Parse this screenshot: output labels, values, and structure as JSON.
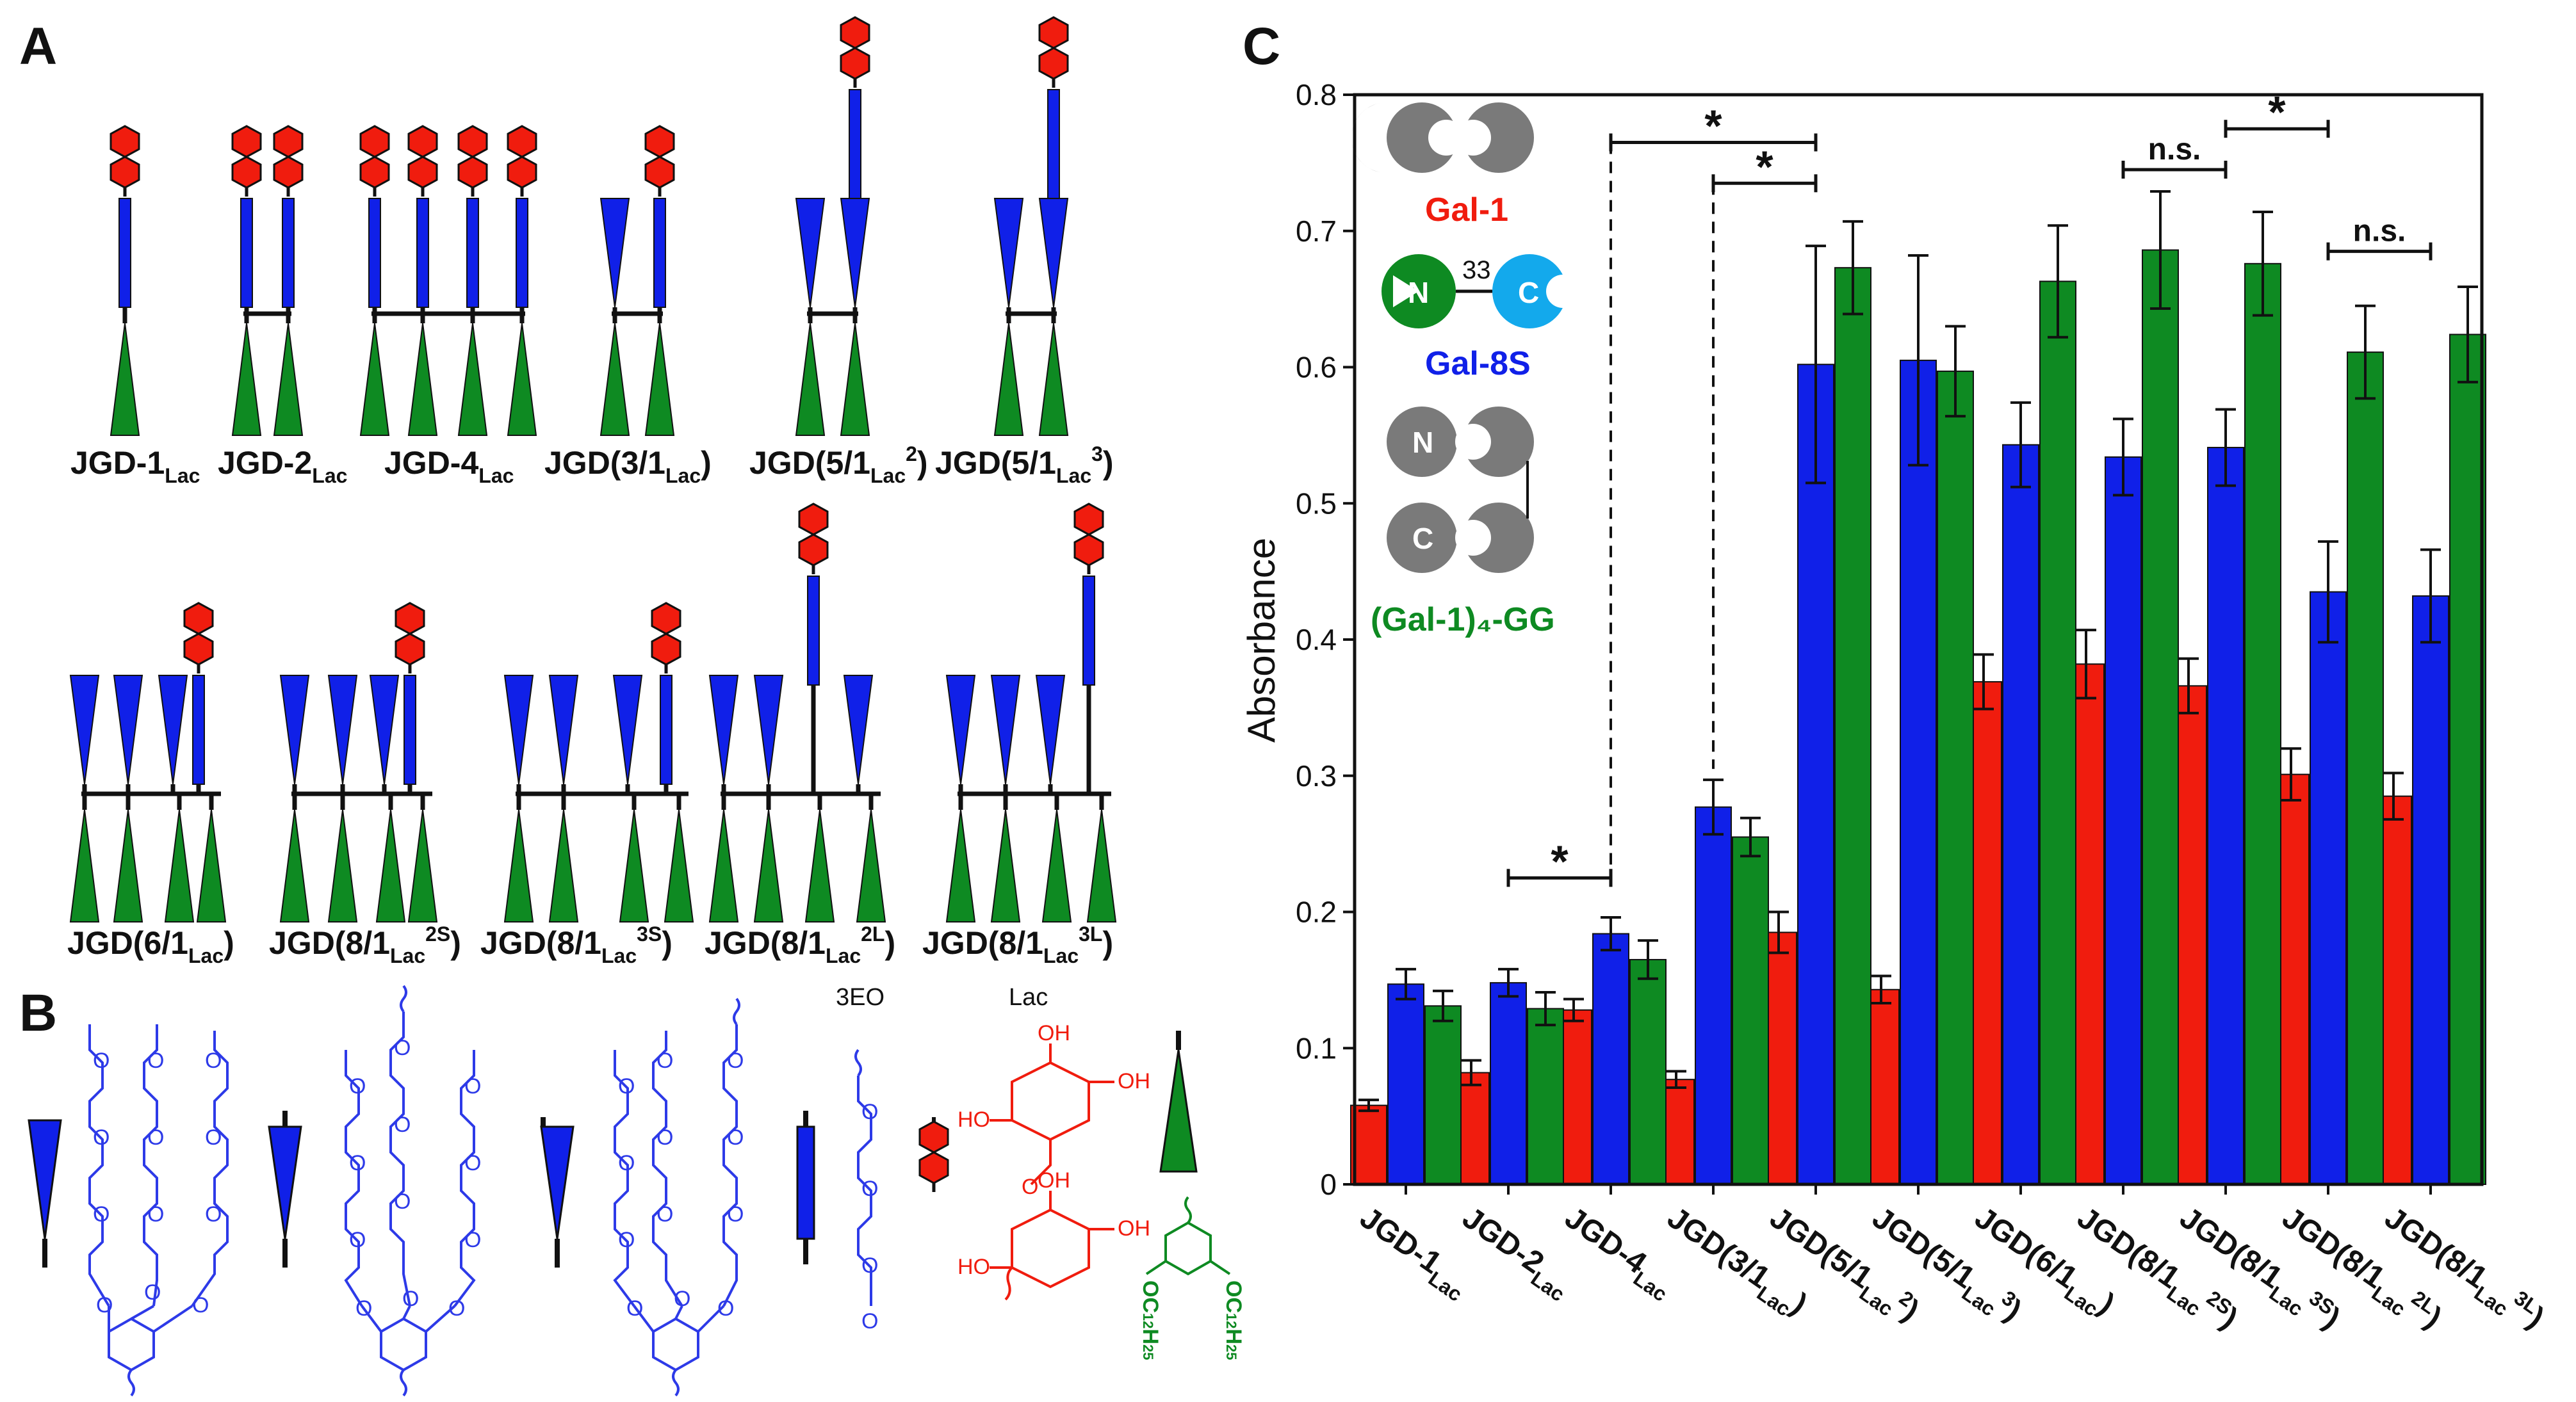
{
  "panels": {
    "a": {
      "letter": "A"
    },
    "b": {
      "letter": "B"
    },
    "c": {
      "letter": "C"
    }
  },
  "panel_a": {
    "compounds_row1": [
      {
        "base": "JGD-1",
        "sub": "Lac",
        "sup": "",
        "tail": ""
      },
      {
        "base": "JGD-2",
        "sub": "Lac",
        "sup": "",
        "tail": ""
      },
      {
        "base": "JGD-4",
        "sub": "Lac",
        "sup": "",
        "tail": ""
      },
      {
        "base": "JGD(3/1",
        "sub": "Lac",
        "sup": "",
        "tail": ")"
      },
      {
        "base": "JGD(5/1",
        "sub": "Lac",
        "sup": "2",
        "tail": ")"
      },
      {
        "base": "JGD(5/1",
        "sub": "Lac",
        "sup": "3",
        "tail": ")"
      }
    ],
    "compounds_row2": [
      {
        "base": "JGD(6/1",
        "sub": "Lac",
        "sup": "",
        "tail": ")"
      },
      {
        "base": "JGD(8/1",
        "sub": "Lac",
        "sup": "2S",
        "tail": ")"
      },
      {
        "base": "JGD(8/1",
        "sub": "Lac",
        "sup": "3S",
        "tail": ")"
      },
      {
        "base": "JGD(8/1",
        "sub": "Lac",
        "sup": "2L",
        "tail": ")"
      },
      {
        "base": "JGD(8/1",
        "sub": "Lac",
        "sup": "3L",
        "tail": ")"
      }
    ]
  },
  "panel_b": {
    "label_3eo": "3EO",
    "label_lac": "Lac",
    "oh": "OH",
    "ho": "HO",
    "o": "O",
    "alkoxy": "OC",
    "alkoxy_sub1": "12",
    "alkoxy_h": "H",
    "alkoxy_sub2": "25"
  },
  "legend": {
    "gal1": "Gal-1",
    "gal8s": "Gal-8S",
    "gal1gg": "(Gal-1)₄-GG",
    "linker": "33",
    "n": "N",
    "c": "C"
  },
  "colors": {
    "red": "#f01c0e",
    "blue": "#1020e8",
    "green": "#0e8a22",
    "gray": "#7a7a7a",
    "cyan": "#13a9ec"
  },
  "chart_data": {
    "type": "bar",
    "ylabel": "Absorbance",
    "ylim": [
      0,
      0.8
    ],
    "yticks": [
      "0",
      "0.1",
      "0.2",
      "0.3",
      "0.4",
      "0.5",
      "0.6",
      "0.7",
      "0.8"
    ],
    "categories": [
      {
        "base": "JGD-1",
        "sub": "Lac",
        "sup": "",
        "tail": ""
      },
      {
        "base": "JGD-2",
        "sub": "Lac",
        "sup": "",
        "tail": ""
      },
      {
        "base": "JGD-4",
        "sub": "Lac",
        "sup": "",
        "tail": ""
      },
      {
        "base": "JGD(3/1",
        "sub": "Lac",
        "sup": "",
        "tail": ")"
      },
      {
        "base": "JGD(5/1",
        "sub": "Lac",
        "sup": "2",
        "tail": ")"
      },
      {
        "base": "JGD(5/1",
        "sub": "Lac",
        "sup": "3",
        "tail": ")"
      },
      {
        "base": "JGD(6/1",
        "sub": "Lac",
        "sup": "",
        "tail": ")"
      },
      {
        "base": "JGD(8/1",
        "sub": "Lac",
        "sup": "2S",
        "tail": ")"
      },
      {
        "base": "JGD(8/1",
        "sub": "Lac",
        "sup": "3S",
        "tail": ")"
      },
      {
        "base": "JGD(8/1",
        "sub": "Lac",
        "sup": "2L",
        "tail": ")"
      },
      {
        "base": "JGD(8/1",
        "sub": "Lac",
        "sup": "3L",
        "tail": ")"
      }
    ],
    "series": [
      {
        "name": "Gal-1",
        "color": "#f01c0e",
        "values": [
          0.058,
          0.082,
          0.128,
          0.077,
          0.185,
          0.143,
          0.369,
          0.382,
          0.366,
          0.301,
          0.285
        ],
        "errors": [
          0.004,
          0.009,
          0.008,
          0.006,
          0.015,
          0.01,
          0.02,
          0.025,
          0.02,
          0.019,
          0.017
        ]
      },
      {
        "name": "Gal-8S",
        "color": "#1020e8",
        "values": [
          0.147,
          0.148,
          0.184,
          0.277,
          0.602,
          0.605,
          0.543,
          0.534,
          0.541,
          0.435,
          0.432
        ],
        "errors": [
          0.011,
          0.01,
          0.012,
          0.02,
          0.087,
          0.077,
          0.031,
          0.028,
          0.028,
          0.037,
          0.034
        ]
      },
      {
        "name": "(Gal-1)₄-GG",
        "color": "#0e8a22",
        "values": [
          0.131,
          0.129,
          0.165,
          0.255,
          0.673,
          0.597,
          0.663,
          0.686,
          0.676,
          0.611,
          0.624
        ],
        "errors": [
          0.011,
          0.012,
          0.014,
          0.014,
          0.034,
          0.033,
          0.041,
          0.043,
          0.038,
          0.034,
          0.035
        ]
      }
    ],
    "annotations": [
      {
        "label": "*",
        "from": "JGD-2Lac",
        "to": "JGD-4Lac",
        "y": 0.225
      },
      {
        "label": "*",
        "from": "JGD-4Lac",
        "to": "JGD(5/1Lac2)",
        "y": 0.765
      },
      {
        "label": "*",
        "from": "JGD(3/1Lac)",
        "to": "JGD(5/1Lac2)",
        "y": 0.735
      },
      {
        "label": "n.s.",
        "from": "JGD(8/1Lac2S)",
        "to": "JGD(8/1Lac3S)",
        "y": 0.745
      },
      {
        "label": "*",
        "from": "JGD(8/1Lac3S)",
        "to": "JGD(8/1Lac2L)",
        "y": 0.775
      },
      {
        "label": "n.s.",
        "from": "JGD(8/1Lac2L)",
        "to": "JGD(8/1Lac3L)",
        "y": 0.685
      }
    ]
  }
}
